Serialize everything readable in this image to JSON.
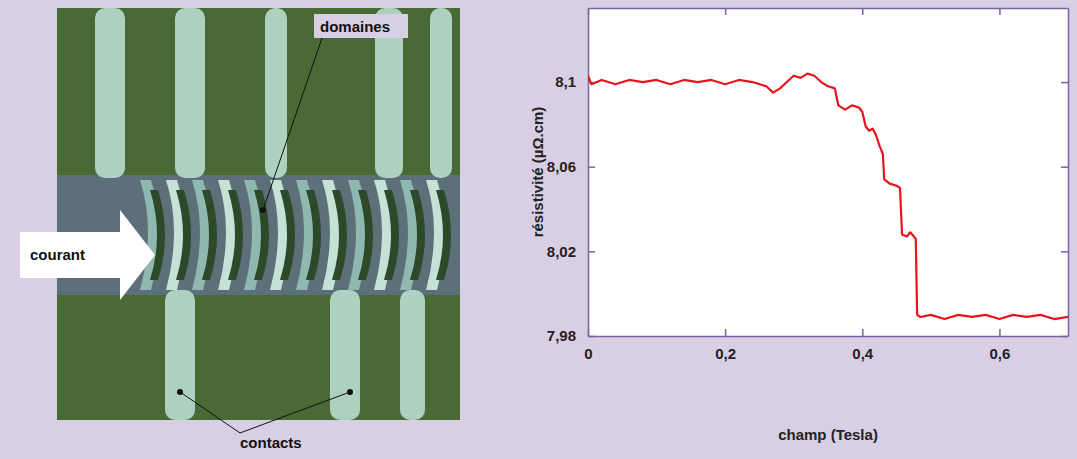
{
  "photo": {
    "labels": [
      "domaines",
      "courant",
      "contacts"
    ]
  },
  "chart_data": {
    "type": "line",
    "x_label": "champ (Tesla)",
    "y_label": "résistivité (µΩ.cm)",
    "x": [
      0,
      0.005,
      0.02,
      0.04,
      0.06,
      0.08,
      0.1,
      0.12,
      0.14,
      0.16,
      0.18,
      0.2,
      0.22,
      0.24,
      0.26,
      0.27,
      0.28,
      0.29,
      0.3,
      0.31,
      0.32,
      0.33,
      0.34,
      0.35,
      0.36,
      0.365,
      0.375,
      0.385,
      0.395,
      0.4,
      0.405,
      0.41,
      0.415,
      0.42,
      0.425,
      0.43,
      0.432,
      0.44,
      0.45,
      0.455,
      0.458,
      0.465,
      0.47,
      0.478,
      0.48,
      0.485,
      0.5,
      0.52,
      0.54,
      0.56,
      0.58,
      0.6,
      0.62,
      0.64,
      0.66,
      0.68,
      0.7
    ],
    "values": [
      8.103,
      8.099,
      8.101,
      8.099,
      8.101,
      8.1,
      8.101,
      8.099,
      8.101,
      8.1,
      8.101,
      8.099,
      8.101,
      8.1,
      8.098,
      8.095,
      8.097,
      8.1,
      8.103,
      8.102,
      8.104,
      8.103,
      8.1,
      8.098,
      8.097,
      8.089,
      8.087,
      8.089,
      8.088,
      8.086,
      8.079,
      8.077,
      8.078,
      8.075,
      8.07,
      8.066,
      8.054,
      8.052,
      8.051,
      8.05,
      8.028,
      8.027,
      8.029,
      8.026,
      7.99,
      7.989,
      7.99,
      7.988,
      7.99,
      7.989,
      7.99,
      7.988,
      7.99,
      7.989,
      7.99,
      7.988,
      7.989
    ],
    "color": "#e8141c",
    "xlim": [
      0,
      0.7
    ],
    "xticks": [
      0,
      {
        "value": 0.2,
        "label": "0,2"
      },
      {
        "value": 0.4,
        "label": "0,4"
      },
      {
        "value": 0.6,
        "label": "0,6"
      }
    ],
    "ylim": [
      7.98,
      8.135
    ],
    "yticks": [
      {
        "value": 7.98,
        "label": "7,98"
      },
      {
        "value": 8.02,
        "label": "8,02"
      },
      {
        "value": 8.06,
        "label": "8,06"
      },
      {
        "value": 8.1,
        "label": "8,1"
      }
    ],
    "grid": false
  }
}
